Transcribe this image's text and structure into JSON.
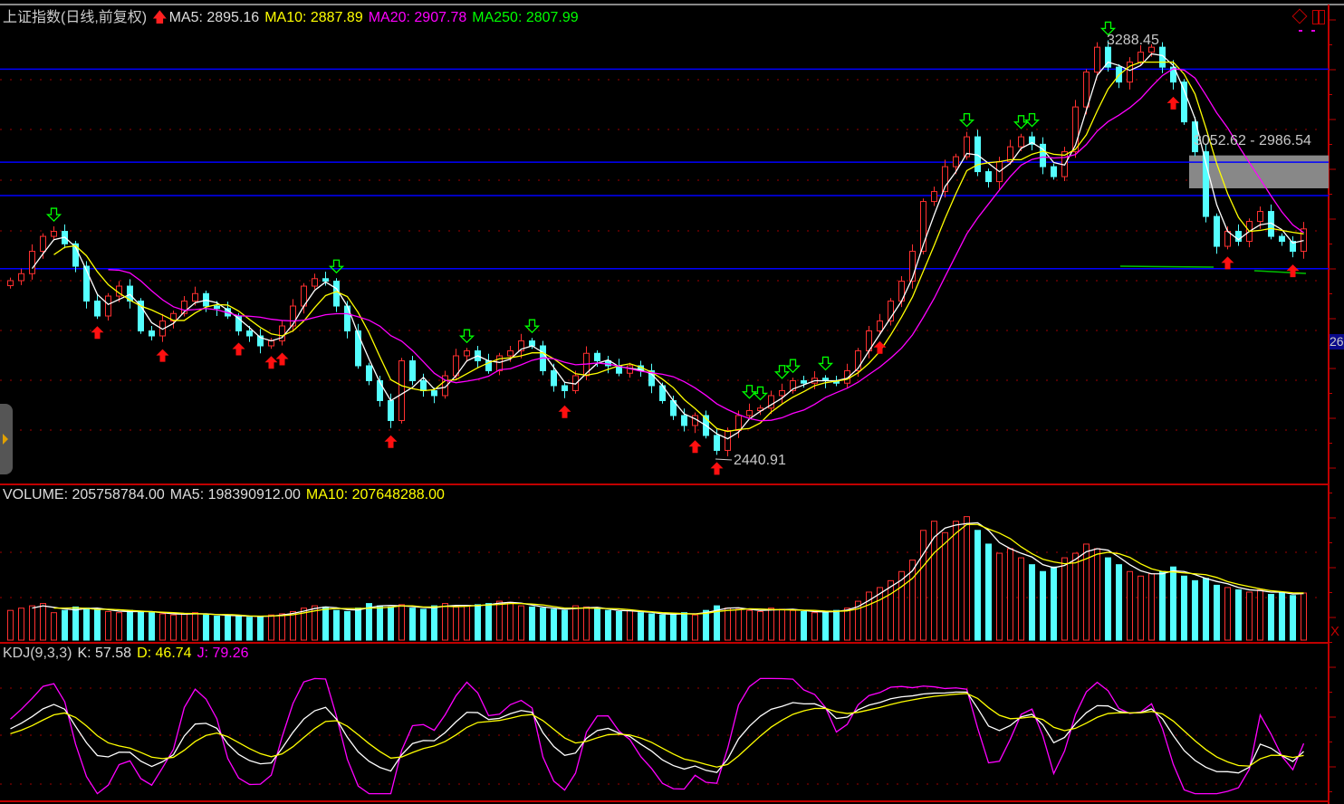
{
  "header": {
    "title": "上证指数(日线,前复权)",
    "ma5": "MA5: 2895.16",
    "ma10": "MA10: 2887.89",
    "ma20": "MA20: 2907.78",
    "ma250": "MA250: 2807.99"
  },
  "volume_header": {
    "volume": "VOLUME: 205758784.00",
    "ma5": "MA5: 198390912.00",
    "ma10": "MA10: 207648288.00"
  },
  "kdj_header": {
    "name": "KDJ(9,3,3)",
    "k": "K: 57.58",
    "d": "D: 46.74",
    "j": "J: 79.26"
  },
  "axis_tag": "26",
  "close_label": "X",
  "colors": {
    "up": "#ff3030",
    "down": "#54ffff",
    "ma5": "#ffffff",
    "ma10": "#ffff00",
    "ma20": "#ff00ff",
    "ma250": "#00ff00",
    "grid": "#a00000",
    "hline": "#0000ff",
    "frame": "#c00000"
  },
  "chart_data": {
    "type": "candlestick",
    "price": {
      "close": [
        2801,
        2815,
        2860,
        2890,
        2900,
        2875,
        2830,
        2760,
        2730,
        2770,
        2790,
        2760,
        2700,
        2690,
        2720,
        2735,
        2760,
        2775,
        2750,
        2745,
        2730,
        2700,
        2690,
        2670,
        2680,
        2710,
        2750,
        2790,
        2805,
        2800,
        2750,
        2700,
        2630,
        2600,
        2560,
        2520,
        2640,
        2600,
        2580,
        2570,
        2610,
        2650,
        2660,
        2640,
        2620,
        2650,
        2660,
        2680,
        2670,
        2620,
        2590,
        2580,
        2610,
        2655,
        2640,
        2630,
        2615,
        2630,
        2620,
        2590,
        2560,
        2530,
        2510,
        2530,
        2490,
        2460,
        2500,
        2530,
        2540,
        2545,
        2570,
        2580,
        2600,
        2595,
        2605,
        2600,
        2595,
        2620,
        2660,
        2700,
        2720,
        2760,
        2800,
        2860,
        2960,
        2980,
        3030,
        3050,
        3090,
        3020,
        3000,
        3040,
        3070,
        3090,
        3075,
        3030,
        3010,
        3060,
        3150,
        3220,
        3270,
        3230,
        3200,
        3240,
        3260,
        3270,
        3230,
        3200,
        3120,
        3060,
        2930,
        2870,
        2900,
        2880,
        2920,
        2940,
        2890,
        2880,
        2860,
        2905
      ],
      "high_label": "3288.45",
      "low_label": "2440.91",
      "high": 3288.45,
      "low": 2440.91,
      "range_label": "3052.62 - 2986.54",
      "range": [
        2986.54,
        3052.62
      ],
      "horizontal_lines": [
        3226,
        3039,
        2972,
        2825
      ],
      "buy_signals": [
        8,
        14,
        21,
        24,
        25,
        35,
        51,
        63,
        65,
        80,
        107,
        112,
        118
      ],
      "sell_signals": [
        4,
        30,
        42,
        48,
        68,
        69,
        71,
        72,
        75,
        88,
        93,
        94,
        101
      ]
    },
    "volume_millions": [
      130,
      140,
      150,
      160,
      120,
      130,
      145,
      140,
      135,
      125,
      120,
      130,
      125,
      120,
      115,
      110,
      115,
      120,
      110,
      105,
      110,
      105,
      100,
      105,
      110,
      115,
      125,
      140,
      150,
      145,
      130,
      125,
      140,
      160,
      150,
      145,
      155,
      140,
      135,
      150,
      160,
      145,
      150,
      155,
      160,
      170,
      165,
      150,
      145,
      140,
      135,
      130,
      150,
      145,
      135,
      130,
      125,
      130,
      120,
      115,
      110,
      115,
      120,
      110,
      130,
      150,
      140,
      135,
      130,
      125,
      140,
      135,
      130,
      125,
      120,
      125,
      130,
      140,
      170,
      210,
      230,
      260,
      300,
      350,
      480,
      520,
      470,
      520,
      540,
      480,
      420,
      380,
      400,
      360,
      330,
      300,
      320,
      360,
      380,
      420,
      400,
      360,
      330,
      300,
      280,
      290,
      300,
      320,
      280,
      260,
      270,
      240,
      230,
      220,
      210,
      220,
      200,
      210,
      195,
      206
    ],
    "indicators": [
      "MA5",
      "MA10",
      "MA20",
      "VOL MA5",
      "VOL MA10",
      "KDJ(9,3,3)"
    ]
  }
}
